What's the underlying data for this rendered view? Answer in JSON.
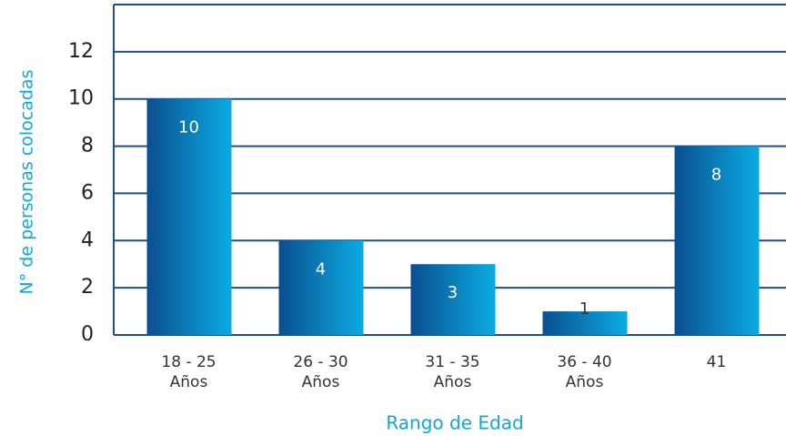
{
  "chart_data": {
    "type": "bar",
    "xlabel": "Rango de Edad",
    "ylabel": "N° de personas colocadas",
    "categories": [
      "18 - 25\nAños",
      "26 - 30\nAños",
      "31 - 35\nAños",
      "36 - 40\nAños",
      "41"
    ],
    "values": [
      10,
      4,
      3,
      1,
      8
    ],
    "color": "#0a4f8f",
    "ylim": [
      0,
      14
    ],
    "yticks": [
      0,
      2,
      4,
      6,
      8,
      10,
      12
    ],
    "grid": true
  }
}
